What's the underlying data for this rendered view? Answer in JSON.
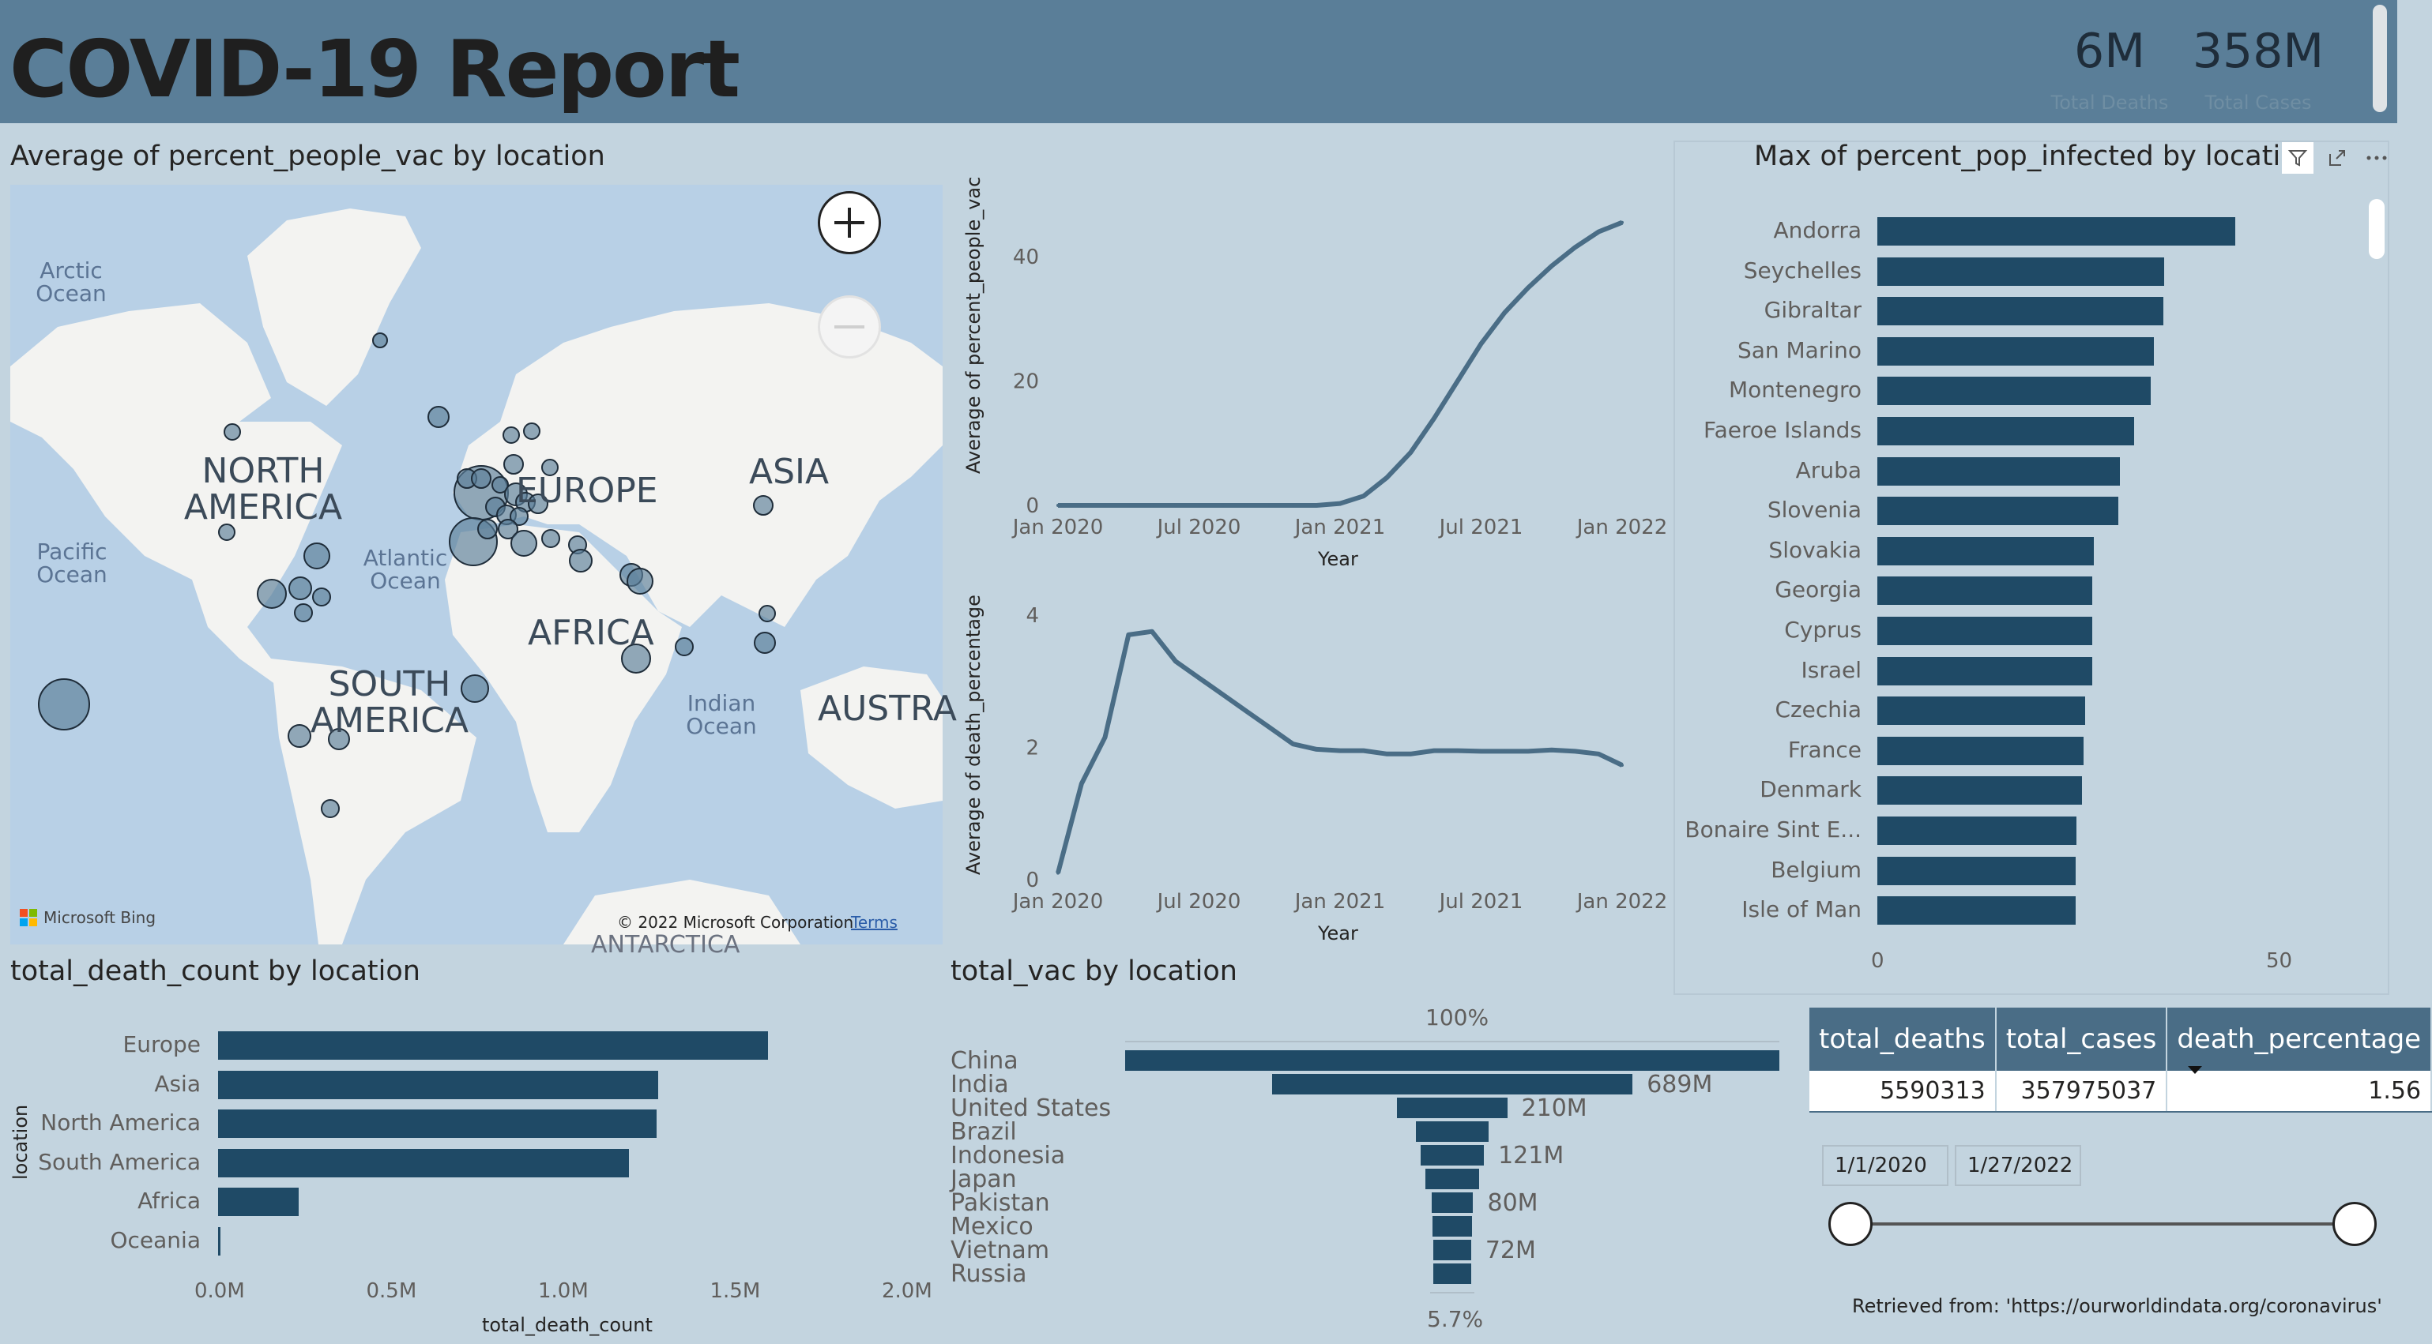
{
  "header": {
    "title": "COVID-19 Report",
    "kpis": [
      {
        "value": "6M",
        "label": "Total Deaths"
      },
      {
        "value": "358M",
        "label": "Total Cases"
      }
    ]
  },
  "map_visual": {
    "title": "Average of percent_people_vac by location",
    "continent_labels": [
      "NORTH AMERICA",
      "EUROPE",
      "ASIA",
      "AFRICA",
      "SOUTH AMERICA",
      "AUSTRA"
    ],
    "north_america_lines": [
      "NORTH",
      "AMERICA"
    ],
    "south_america_lines": [
      "SOUTH",
      "AMERICA"
    ],
    "ocean_labels": {
      "arctic": [
        "Arctic",
        "Ocean"
      ],
      "atlantic": [
        "Atlantic",
        "Ocean"
      ],
      "pacific": [
        "Pacific",
        "Ocean"
      ],
      "indian": [
        "Indian",
        "Ocean"
      ]
    },
    "antarctica_label": "ANTARCTICA",
    "attribution": "© 2022 Microsoft Corporation",
    "terms_link": "Terms",
    "bing_logo": "Microsoft Bing",
    "zoom_in_icon": "plus-icon",
    "zoom_out_icon": "minus-icon"
  },
  "vac_line_chart": {
    "chart_data": {
      "type": "line",
      "ylabel": "Average of percent_people_vac",
      "xlabel": "Year",
      "x_ticks": [
        "Jan 2020",
        "Jul 2020",
        "Jan 2021",
        "Jul 2021",
        "Jan 2022"
      ],
      "y_ticks": [
        "0",
        "20",
        "40"
      ],
      "ylim": [
        0,
        48
      ],
      "x": [
        "2020-01",
        "2020-02",
        "2020-03",
        "2020-04",
        "2020-05",
        "2020-06",
        "2020-07",
        "2020-08",
        "2020-09",
        "2020-10",
        "2020-11",
        "2020-12",
        "2021-01",
        "2021-02",
        "2021-03",
        "2021-04",
        "2021-05",
        "2021-06",
        "2021-07",
        "2021-08",
        "2021-09",
        "2021-10",
        "2021-11",
        "2021-12",
        "2022-01"
      ],
      "values": [
        0,
        0,
        0,
        0,
        0,
        0,
        0,
        0,
        0,
        0,
        0,
        0,
        0.3,
        1.5,
        4.5,
        8.5,
        14,
        20,
        26,
        31,
        35,
        38.5,
        41.5,
        44,
        45.5
      ]
    }
  },
  "death_pct_line_chart": {
    "chart_data": {
      "type": "line",
      "ylabel": "Average of death_percentage",
      "xlabel": "Year",
      "x_ticks": [
        "Jan 2020",
        "Jul 2020",
        "Jan 2021",
        "Jul 2021",
        "Jan 2022"
      ],
      "y_ticks": [
        "0",
        "2",
        "4"
      ],
      "ylim": [
        0,
        4.2
      ],
      "x": [
        "2020-01",
        "2020-02",
        "2020-03",
        "2020-04",
        "2020-05",
        "2020-06",
        "2020-07",
        "2020-08",
        "2020-09",
        "2020-10",
        "2020-11",
        "2020-12",
        "2021-01",
        "2021-02",
        "2021-03",
        "2021-04",
        "2021-05",
        "2021-06",
        "2021-07",
        "2021-08",
        "2021-09",
        "2021-10",
        "2021-11",
        "2021-12",
        "2022-01"
      ],
      "values": [
        0.1,
        1.45,
        2.15,
        3.7,
        3.75,
        3.3,
        3.05,
        2.8,
        2.55,
        2.3,
        2.05,
        1.97,
        1.95,
        1.95,
        1.9,
        1.9,
        1.95,
        1.95,
        1.94,
        1.94,
        1.94,
        1.96,
        1.94,
        1.9,
        1.73
      ]
    }
  },
  "infected_chart": {
    "chart_data": {
      "type": "bar",
      "orientation": "horizontal",
      "title": "Max of percent_pop_infected by location",
      "categories": [
        "Andorra",
        "Seychelles",
        "Gibraltar",
        "San Marino",
        "Montenegro",
        "Faeroe Islands",
        "Aruba",
        "Slovenia",
        "Slovakia",
        "Georgia",
        "Cyprus",
        "Israel",
        "Czechia",
        "France",
        "Denmark",
        "Bonaire Sint E...",
        "Belgium",
        "Isle of Man"
      ],
      "values": [
        44.8,
        35.9,
        35.8,
        34.6,
        34.2,
        32.1,
        30.3,
        30.1,
        27.1,
        26.9,
        26.9,
        26.9,
        26.0,
        25.8,
        25.6,
        24.9,
        24.8,
        24.8
      ],
      "x_ticks": [
        "0",
        "50"
      ],
      "xlim": [
        0,
        50
      ]
    },
    "filter_icon": "filter-icon",
    "focus_icon": "expand-icon",
    "more_icon": "more-options-icon"
  },
  "death_count_chart": {
    "chart_data": {
      "type": "bar",
      "orientation": "horizontal",
      "title": "total_death_count by location",
      "ylabel": "location",
      "xlabel": "total_death_count",
      "categories": [
        "Europe",
        "Asia",
        "North America",
        "South America",
        "Africa",
        "Oceania"
      ],
      "values": [
        1600000,
        1280000,
        1275000,
        1195000,
        235000,
        8000
      ],
      "x_ticks": [
        "0.0M",
        "0.5M",
        "1.0M",
        "1.5M",
        "2.0M"
      ],
      "xlim": [
        0,
        2000000
      ]
    }
  },
  "vac_funnel_chart": {
    "chart_data": {
      "type": "bar",
      "subtype": "funnel",
      "title": "total_vac by location",
      "top_label": "100%",
      "bottom_label": "5.7%",
      "categories": [
        "China",
        "India",
        "United States",
        "Brazil",
        "Indonesia",
        "Japan",
        "Pakistan",
        "Mexico",
        "Vietnam",
        "Russia"
      ],
      "values": [
        1250000000,
        689000000,
        210000000,
        140000000,
        121000000,
        102000000,
        80000000,
        76000000,
        72000000,
        71000000
      ],
      "data_labels": [
        "",
        "689M",
        "210M",
        "",
        "121M",
        "",
        "80M",
        "",
        "72M",
        ""
      ]
    }
  },
  "table": {
    "headers": [
      "total_deaths",
      "total_cases",
      "death_percentage"
    ],
    "row": [
      "5590313",
      "357975037",
      "1.56"
    ],
    "sort_icon": "sort-descending-icon"
  },
  "date_slicer": {
    "start": "1/1/2020",
    "end": "1/27/2022",
    "range_fraction": [
      0,
      1
    ]
  },
  "source_text": "Retrieved from: 'https://ourworldindata.org/coronavirus'",
  "colors": {
    "background": "#c3d4df",
    "header": "#5a7e98",
    "bar": "#1f4a66",
    "line": "#4a6d86",
    "table_header": "#4a6d86"
  }
}
